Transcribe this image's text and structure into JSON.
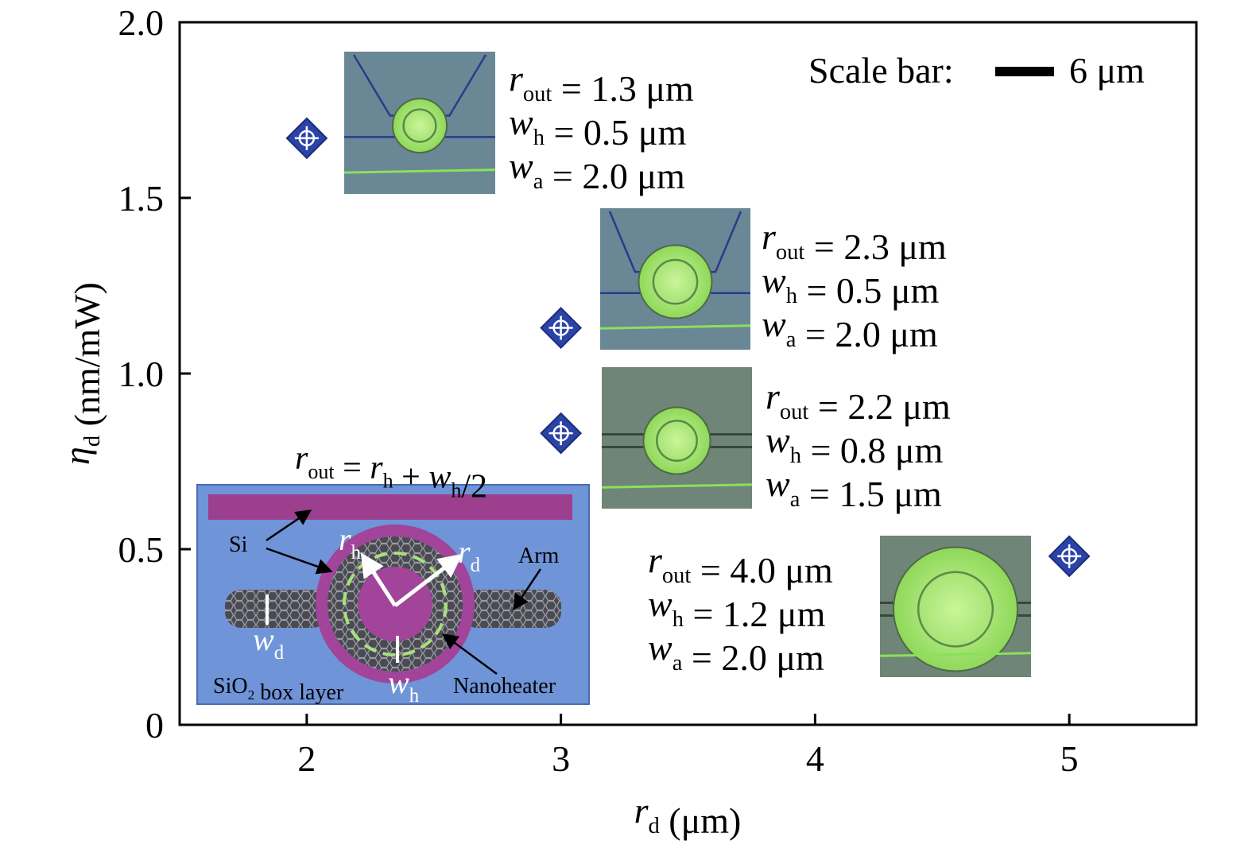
{
  "chart_data": {
    "type": "scatter",
    "x": [
      2,
      3,
      3,
      5
    ],
    "values": [
      1.67,
      1.13,
      0.83,
      0.48
    ],
    "color": "#2b43a6",
    "xlim": [
      1.5,
      5.5
    ],
    "ylim": [
      0,
      2.0
    ],
    "xticks": [
      2,
      3,
      4,
      5
    ],
    "yticks": [
      0,
      0.5,
      {
        "value": 1.0,
        "label": "1.0"
      },
      1.5,
      {
        "value": 2.0,
        "label": "2.0"
      }
    ],
    "x_label": [
      {
        "t": "r",
        "i": true,
        "sub": "d"
      },
      {
        "t": "(μm)"
      }
    ],
    "y_label": [
      {
        "t": "η",
        "i": true,
        "sub": "d"
      },
      {
        "t": "(nm/mW)"
      }
    ],
    "scale_bar": {
      "label": "Scale bar:",
      "length": "6 μm"
    },
    "annotations": [
      [
        [
          {
            "t": "r",
            "i": true,
            "sub": "out"
          },
          {
            "t": "="
          },
          {
            "t": "1.3 μm"
          }
        ],
        [
          {
            "t": "w",
            "i": true,
            "sub": "h"
          },
          {
            "t": "="
          },
          {
            "t": "0.5 μm"
          }
        ],
        [
          {
            "t": "w",
            "i": true,
            "sub": "a"
          },
          {
            "t": "="
          },
          {
            "t": "2.0 μm"
          }
        ]
      ],
      [
        [
          {
            "t": "r",
            "i": true,
            "sub": "out"
          },
          {
            "t": "="
          },
          {
            "t": "2.3 μm"
          }
        ],
        [
          {
            "t": "w",
            "i": true,
            "sub": "h"
          },
          {
            "t": "="
          },
          {
            "t": "0.5 μm"
          }
        ],
        [
          {
            "t": "w",
            "i": true,
            "sub": "a"
          },
          {
            "t": "="
          },
          {
            "t": "2.0 μm"
          }
        ]
      ],
      [
        [
          {
            "t": "r",
            "i": true,
            "sub": "out"
          },
          {
            "t": "="
          },
          {
            "t": "2.2 μm"
          }
        ],
        [
          {
            "t": "w",
            "i": true,
            "sub": "h"
          },
          {
            "t": "="
          },
          {
            "t": "0.8 μm"
          }
        ],
        [
          {
            "t": "w",
            "i": true,
            "sub": "a"
          },
          {
            "t": "="
          },
          {
            "t": "1.5 μm"
          }
        ]
      ],
      [
        [
          {
            "t": "r",
            "i": true,
            "sub": "out"
          },
          {
            "t": "="
          },
          {
            "t": "4.0 μm"
          }
        ],
        [
          {
            "t": "w",
            "i": true,
            "sub": "h"
          },
          {
            "t": "="
          },
          {
            "t": "1.2 μm"
          }
        ],
        [
          {
            "t": "w",
            "i": true,
            "sub": "a"
          },
          {
            "t": "="
          },
          {
            "t": "2.0 μm"
          }
        ]
      ]
    ],
    "inset": {
      "formula": [
        {
          "t": "r",
          "i": true,
          "sub": "out"
        },
        {
          "t": "="
        },
        {
          "t": "r",
          "i": true,
          "sub": "h"
        },
        {
          "t": "+"
        },
        {
          "t": "w",
          "i": true,
          "sub": "h"
        },
        {
          "t": "/2"
        }
      ],
      "si": [
        {
          "t": "Si"
        }
      ],
      "arm": [
        {
          "t": "Arm"
        }
      ],
      "r_h": [
        {
          "t": "r",
          "i": true,
          "sub": "h"
        }
      ],
      "r_d": [
        {
          "t": "r",
          "i": true,
          "sub": "d"
        }
      ],
      "w_d": [
        {
          "t": "w",
          "i": true,
          "sub": "d"
        }
      ],
      "w_h": [
        {
          "t": "w",
          "i": true,
          "sub": "h"
        }
      ],
      "box": [
        {
          "t": "SiO",
          "sub": "2"
        },
        {
          "t": "box layer"
        }
      ],
      "heater": [
        {
          "t": "Nanoheater"
        }
      ]
    }
  }
}
